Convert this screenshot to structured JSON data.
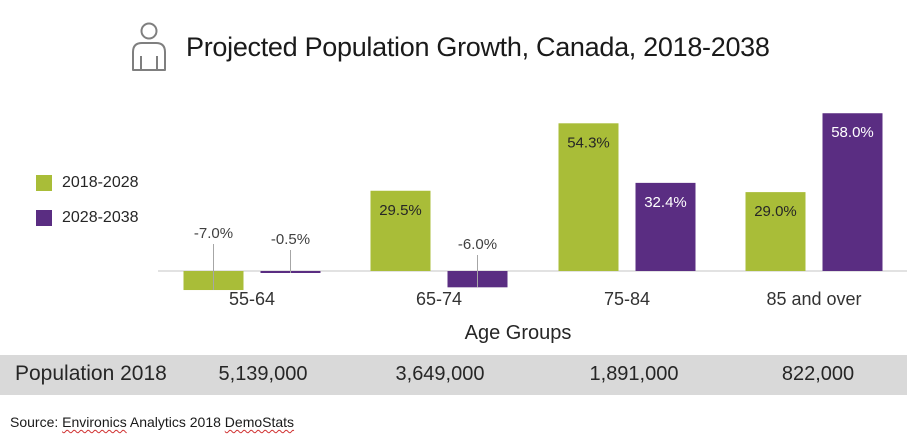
{
  "header": {
    "icon": "person-outline-icon",
    "title": "Projected Population Growth, Canada, 2018-2038"
  },
  "legend": [
    {
      "label": "2018-2028",
      "color": "#a9bd38"
    },
    {
      "label": "2028-2038",
      "color": "#5a2d82"
    }
  ],
  "chart_data": {
    "type": "bar",
    "title": "Projected Population Growth, Canada, 2018-2038",
    "xlabel": "Age Groups",
    "ylabel": "",
    "categories": [
      "55-64",
      "65-74",
      "75-84",
      "85 and over"
    ],
    "series": [
      {
        "name": "2018-2028",
        "color": "#a9bd38",
        "values": [
          -7.0,
          29.5,
          54.3,
          29.0
        ],
        "labels": [
          "-7.0%",
          "29.5%",
          "54.3%",
          "29.0%"
        ]
      },
      {
        "name": "2028-2038",
        "color": "#5a2d82",
        "values": [
          -0.5,
          -6.0,
          32.4,
          58.0
        ],
        "labels": [
          "-0.5%",
          "-6.0%",
          "32.4%",
          "58.0%"
        ]
      }
    ],
    "ylim": [
      -10,
      60
    ],
    "grid": false,
    "legend_position": "left",
    "units": "%"
  },
  "population_row": {
    "label": "Population 2018",
    "values": [
      "5,139,000",
      "3,649,000",
      "1,891,000",
      "822,000"
    ]
  },
  "source": {
    "prefix": "Source: ",
    "word1": "Environics",
    "middle": " Analytics 2018 ",
    "word2": "DemoStats"
  }
}
